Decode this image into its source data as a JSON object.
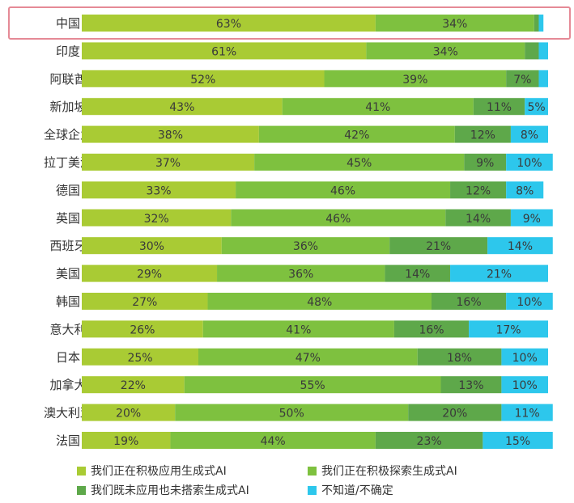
{
  "chart_data": {
    "type": "bar",
    "orientation": "horizontal",
    "stacked": true,
    "unit": "%",
    "categories": [
      "中国",
      "印度",
      "阿联酋",
      "新加坡",
      "全球企业",
      "拉丁美洲",
      "德国",
      "英国",
      "西班牙",
      "美国",
      "韩国",
      "意大利",
      "日本",
      "加拿大",
      "澳大利亚",
      "法国"
    ],
    "series": [
      {
        "name": "我们正在积极应用生成式AI",
        "color": "#a9cb34",
        "values": [
          63,
          61,
          52,
          43,
          38,
          37,
          33,
          32,
          30,
          29,
          27,
          26,
          25,
          22,
          20,
          19
        ],
        "labels": [
          "63%",
          "61%",
          "52%",
          "43%",
          "38%",
          "37%",
          "33%",
          "32%",
          "30%",
          "29%",
          "27%",
          "26%",
          "25%",
          "22%",
          "20%",
          "19%"
        ]
      },
      {
        "name": "我们正在积极探索生成式AI",
        "color": "#7ec13f",
        "values": [
          34,
          34,
          39,
          41,
          42,
          45,
          46,
          46,
          36,
          36,
          48,
          41,
          47,
          55,
          50,
          44
        ],
        "labels": [
          "34%",
          "34%",
          "39%",
          "41%",
          "42%",
          "45%",
          "46%",
          "46%",
          "36%",
          "36%",
          "48%",
          "41%",
          "47%",
          "55%",
          "50%",
          "44%"
        ]
      },
      {
        "name": "我们既未应用也未搭索生成式AI",
        "color": "#5ea84a",
        "values": [
          1,
          3,
          7,
          11,
          12,
          9,
          12,
          14,
          21,
          14,
          16,
          16,
          18,
          13,
          20,
          23
        ],
        "labels": [
          "",
          "",
          "7%",
          "11%",
          "12%",
          "9%",
          "12%",
          "14%",
          "21%",
          "14%",
          "16%",
          "16%",
          "18%",
          "13%",
          "20%",
          "23%"
        ]
      },
      {
        "name": "不知道/不确定",
        "color": "#2dc7ec",
        "values": [
          1,
          2,
          2,
          5,
          8,
          10,
          8,
          9,
          14,
          21,
          10,
          17,
          10,
          10,
          11,
          15
        ],
        "labels": [
          "",
          "",
          "",
          "5%",
          "8%",
          "10%",
          "8%",
          "9%",
          "14%",
          "21%",
          "10%",
          "17%",
          "10%",
          "10%",
          "11%",
          "15%"
        ]
      }
    ],
    "xlim": [
      0,
      100
    ],
    "highlight_category": "中国",
    "highlight_color": "#e58a96",
    "legend_position": "bottom"
  }
}
